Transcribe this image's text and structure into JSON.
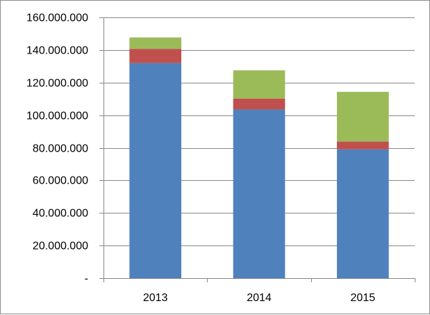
{
  "chart_data": {
    "type": "bar",
    "stacked": true,
    "categories": [
      "2013",
      "2014",
      "2015"
    ],
    "series": [
      {
        "values": [
          132000000,
          103500000,
          79000000
        ],
        "color": "#4F81BD"
      },
      {
        "values": [
          8700000,
          6700000,
          4800000
        ],
        "color": "#C0504D"
      },
      {
        "values": [
          7000000,
          17300000,
          30500000
        ],
        "color": "#9BBB59"
      }
    ],
    "ylim": [
      0,
      160000000
    ],
    "yticks": [
      0,
      20000000,
      40000000,
      60000000,
      80000000,
      100000000,
      120000000,
      140000000,
      160000000
    ],
    "ytick_labels": [
      "-",
      "20.000.000",
      "40.000.000",
      "60.000.000",
      "80.000.000",
      "100.000.000",
      "120.000.000",
      "140.000.000",
      "160.000.000"
    ],
    "grid": true,
    "legend": "none",
    "xlabel": "",
    "ylabel": "",
    "title": ""
  }
}
